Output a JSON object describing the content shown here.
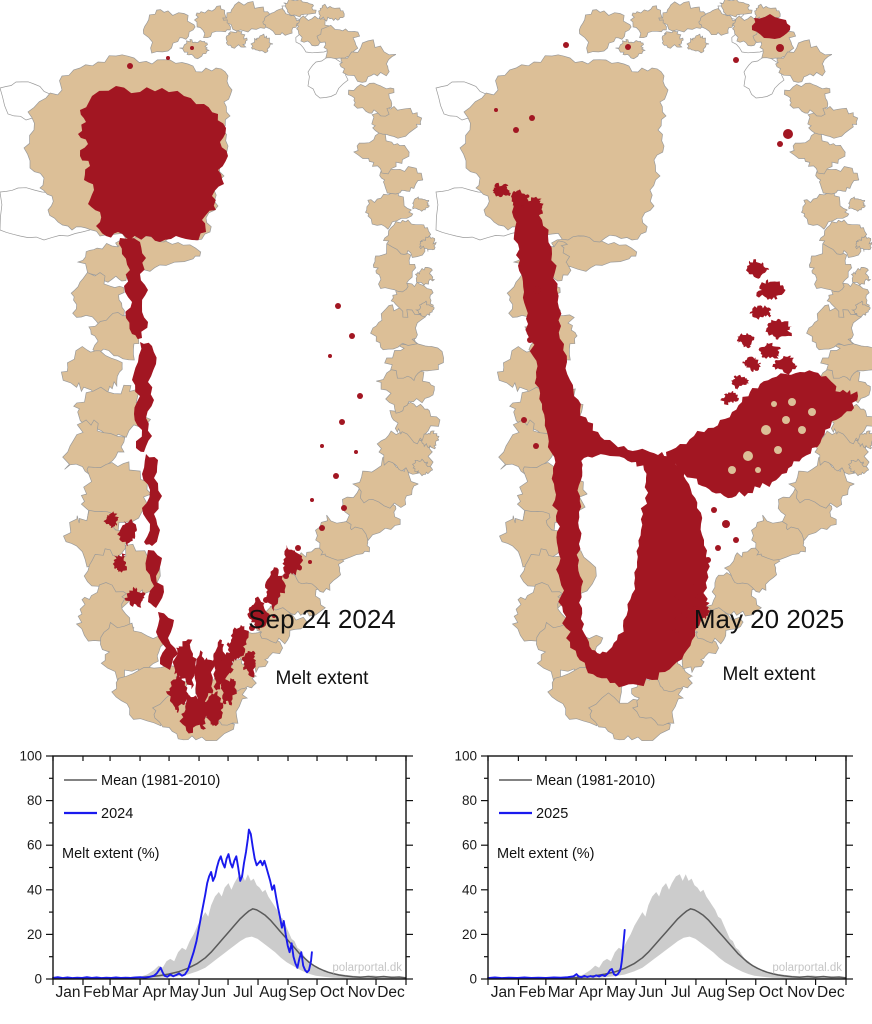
{
  "maps": [
    {
      "date_label": "Sep 24 2024",
      "caption": "Melt extent"
    },
    {
      "date_label": "May 20 2025",
      "caption": "Melt extent"
    }
  ],
  "colors": {
    "melt_red": "#a21622",
    "land_tan": "#dcbf97",
    "coastline_gray": "#9a9a9a",
    "ice_white": "#ffffff",
    "series_blue": "#1a1aee",
    "mean_gray": "#5a5a5a",
    "band_gray": "#cccccc",
    "axis_black": "#111111",
    "watermark_gray": "#c5c5c5"
  },
  "chart_data": {
    "type": "line",
    "ylabel": "Melt extent (%)",
    "ylim": [
      0,
      100
    ],
    "yticks": [
      0,
      20,
      40,
      60,
      80,
      100
    ],
    "months": [
      "Jan",
      "Feb",
      "Mar",
      "Apr",
      "May",
      "Jun",
      "Jul",
      "Aug",
      "Sep",
      "Oct",
      "Nov",
      "Dec"
    ],
    "watermark": "polarportal.dk",
    "legend_mean": "Mean (1981-2010)",
    "mean": [
      [
        1,
        0.3
      ],
      [
        15,
        0.3
      ],
      [
        31,
        0.3
      ],
      [
        45,
        0.4
      ],
      [
        60,
        0.4
      ],
      [
        75,
        0.5
      ],
      [
        91,
        0.7
      ],
      [
        100,
        1
      ],
      [
        110,
        1.5
      ],
      [
        120,
        2.2
      ],
      [
        130,
        3.2
      ],
      [
        140,
        4.8
      ],
      [
        150,
        7
      ],
      [
        158,
        9.5
      ],
      [
        164,
        12
      ],
      [
        170,
        15
      ],
      [
        176,
        18
      ],
      [
        182,
        21
      ],
      [
        188,
        24
      ],
      [
        194,
        27
      ],
      [
        199,
        29
      ],
      [
        203,
        30.5
      ],
      [
        207,
        31.5
      ],
      [
        211,
        31
      ],
      [
        215,
        30
      ],
      [
        220,
        28.5
      ],
      [
        225,
        26.5
      ],
      [
        230,
        24
      ],
      [
        235,
        21.5
      ],
      [
        240,
        19
      ],
      [
        245,
        16.5
      ],
      [
        250,
        14
      ],
      [
        255,
        11.5
      ],
      [
        260,
        9.5
      ],
      [
        265,
        7.5
      ],
      [
        270,
        6
      ],
      [
        275,
        4.8
      ],
      [
        280,
        3.8
      ],
      [
        285,
        3
      ],
      [
        290,
        2.4
      ],
      [
        296,
        1.8
      ],
      [
        302,
        1.4
      ],
      [
        310,
        1
      ],
      [
        318,
        0.8
      ],
      [
        326,
        1.1
      ],
      [
        334,
        0.8
      ],
      [
        342,
        1.1
      ],
      [
        350,
        0.7
      ],
      [
        358,
        0.9
      ],
      [
        365,
        0.5
      ]
    ],
    "band_upper": [
      [
        91,
        1
      ],
      [
        98,
        2
      ],
      [
        105,
        4
      ],
      [
        110,
        6
      ],
      [
        114,
        5
      ],
      [
        118,
        8
      ],
      [
        122,
        9
      ],
      [
        126,
        8
      ],
      [
        130,
        12
      ],
      [
        134,
        14
      ],
      [
        138,
        13
      ],
      [
        142,
        17
      ],
      [
        146,
        20
      ],
      [
        150,
        24
      ],
      [
        154,
        27
      ],
      [
        158,
        30
      ],
      [
        161,
        28
      ],
      [
        164,
        33
      ],
      [
        168,
        37
      ],
      [
        172,
        39
      ],
      [
        175,
        37
      ],
      [
        178,
        41
      ],
      [
        182,
        43
      ],
      [
        185,
        40
      ],
      [
        188,
        43
      ],
      [
        192,
        46
      ],
      [
        196,
        47
      ],
      [
        199,
        44
      ],
      [
        202,
        47
      ],
      [
        205,
        44
      ],
      [
        208,
        45
      ],
      [
        211,
        42
      ],
      [
        214,
        41
      ],
      [
        217,
        39
      ],
      [
        220,
        40
      ],
      [
        223,
        37
      ],
      [
        226,
        35
      ],
      [
        229,
        33
      ],
      [
        232,
        31
      ],
      [
        235,
        28
      ],
      [
        238,
        27
      ],
      [
        241,
        24
      ],
      [
        244,
        21
      ],
      [
        247,
        18
      ],
      [
        250,
        17
      ],
      [
        253,
        14
      ],
      [
        256,
        13
      ],
      [
        259,
        11
      ],
      [
        262,
        9
      ],
      [
        266,
        8
      ],
      [
        270,
        6
      ],
      [
        274,
        5
      ],
      [
        280,
        4
      ],
      [
        286,
        3
      ],
      [
        292,
        2.5
      ],
      [
        300,
        2
      ],
      [
        310,
        1.5
      ],
      [
        320,
        1.2
      ],
      [
        330,
        1.6
      ],
      [
        340,
        1.1
      ],
      [
        350,
        1.2
      ],
      [
        360,
        0.8
      ],
      [
        365,
        0.6
      ]
    ],
    "band_lower": [
      [
        91,
        0.2
      ],
      [
        100,
        0.3
      ],
      [
        110,
        0.5
      ],
      [
        120,
        0.8
      ],
      [
        130,
        1.2
      ],
      [
        140,
        2
      ],
      [
        150,
        3.5
      ],
      [
        158,
        5
      ],
      [
        164,
        7
      ],
      [
        170,
        9
      ],
      [
        176,
        11
      ],
      [
        182,
        13
      ],
      [
        188,
        15
      ],
      [
        194,
        17
      ],
      [
        200,
        18.5
      ],
      [
        206,
        19
      ],
      [
        212,
        18
      ],
      [
        218,
        16
      ],
      [
        224,
        14
      ],
      [
        230,
        12
      ],
      [
        236,
        9.5
      ],
      [
        242,
        7.5
      ],
      [
        248,
        6
      ],
      [
        254,
        4.5
      ],
      [
        260,
        3.2
      ],
      [
        266,
        2.2
      ],
      [
        272,
        1.5
      ],
      [
        280,
        1
      ],
      [
        290,
        0.6
      ],
      [
        300,
        0.4
      ],
      [
        320,
        0.3
      ],
      [
        340,
        0.3
      ],
      [
        365,
        0.2
      ]
    ],
    "charts": [
      {
        "year_label": "2024",
        "series": [
          [
            1,
            0.5
          ],
          [
            6,
            0.8
          ],
          [
            11,
            0.4
          ],
          [
            16,
            0.7
          ],
          [
            21,
            0.4
          ],
          [
            26,
            0.6
          ],
          [
            31,
            0.5
          ],
          [
            36,
            0.8
          ],
          [
            41,
            0.5
          ],
          [
            46,
            0.7
          ],
          [
            51,
            0.4
          ],
          [
            56,
            0.6
          ],
          [
            61,
            0.5
          ],
          [
            66,
            0.7
          ],
          [
            71,
            0.5
          ],
          [
            76,
            0.6
          ],
          [
            81,
            0.5
          ],
          [
            86,
            0.7
          ],
          [
            91,
            0.8
          ],
          [
            96,
            0.6
          ],
          [
            101,
            1
          ],
          [
            105,
            1.5
          ],
          [
            108,
            2.5
          ],
          [
            112,
            5
          ],
          [
            114,
            3
          ],
          [
            116,
            1.5
          ],
          [
            119,
            1
          ],
          [
            122,
            2
          ],
          [
            125,
            1.2
          ],
          [
            128,
            1.8
          ],
          [
            131,
            2.5
          ],
          [
            134,
            1.5
          ],
          [
            137,
            2
          ],
          [
            140,
            4
          ],
          [
            143,
            8
          ],
          [
            146,
            12
          ],
          [
            149,
            17
          ],
          [
            152,
            24
          ],
          [
            155,
            31
          ],
          [
            158,
            38
          ],
          [
            160,
            43
          ],
          [
            162,
            46
          ],
          [
            164,
            48
          ],
          [
            166,
            44
          ],
          [
            168,
            46
          ],
          [
            170,
            50
          ],
          [
            172,
            53
          ],
          [
            174,
            55
          ],
          [
            176,
            52
          ],
          [
            178,
            50
          ],
          [
            180,
            54
          ],
          [
            182,
            56
          ],
          [
            184,
            52
          ],
          [
            186,
            50
          ],
          [
            188,
            53
          ],
          [
            190,
            55
          ],
          [
            192,
            50
          ],
          [
            194,
            44
          ],
          [
            196,
            46
          ],
          [
            198,
            52
          ],
          [
            200,
            57
          ],
          [
            202,
            63
          ],
          [
            203,
            67
          ],
          [
            205,
            65
          ],
          [
            207,
            59
          ],
          [
            209,
            54
          ],
          [
            211,
            51
          ],
          [
            213,
            52
          ],
          [
            215,
            53
          ],
          [
            217,
            51
          ],
          [
            219,
            53
          ],
          [
            221,
            50
          ],
          [
            223,
            47
          ],
          [
            225,
            44
          ],
          [
            227,
            40
          ],
          [
            229,
            42
          ],
          [
            231,
            37
          ],
          [
            233,
            32
          ],
          [
            235,
            28
          ],
          [
            237,
            23
          ],
          [
            239,
            26
          ],
          [
            241,
            20
          ],
          [
            243,
            15
          ],
          [
            245,
            12
          ],
          [
            247,
            16
          ],
          [
            249,
            10
          ],
          [
            251,
            7
          ],
          [
            253,
            5
          ],
          [
            255,
            9
          ],
          [
            257,
            12
          ],
          [
            259,
            6
          ],
          [
            261,
            4
          ],
          [
            263,
            3
          ],
          [
            265,
            4
          ],
          [
            267,
            8
          ],
          [
            268,
            12
          ]
        ]
      },
      {
        "year_label": "2025",
        "series": [
          [
            1,
            0.4
          ],
          [
            8,
            0.7
          ],
          [
            15,
            0.4
          ],
          [
            22,
            0.6
          ],
          [
            31,
            0.5
          ],
          [
            38,
            0.7
          ],
          [
            45,
            0.5
          ],
          [
            52,
            0.6
          ],
          [
            60,
            0.5
          ],
          [
            68,
            0.7
          ],
          [
            75,
            0.6
          ],
          [
            82,
            0.8
          ],
          [
            88,
            1.2
          ],
          [
            91,
            2.2
          ],
          [
            93,
            1.2
          ],
          [
            96,
            0.8
          ],
          [
            99,
            1.4
          ],
          [
            102,
            0.9
          ],
          [
            105,
            1.3
          ],
          [
            108,
            1
          ],
          [
            111,
            1.6
          ],
          [
            114,
            1.1
          ],
          [
            117,
            1.8
          ],
          [
            120,
            1.3
          ],
          [
            123,
            2.5
          ],
          [
            125,
            4
          ],
          [
            127,
            4.5
          ],
          [
            129,
            2.2
          ],
          [
            131,
            1.6
          ],
          [
            133,
            2.2
          ],
          [
            135,
            3.5
          ],
          [
            136,
            5
          ],
          [
            137,
            8
          ],
          [
            138,
            12
          ],
          [
            139,
            17
          ],
          [
            140,
            22
          ]
        ]
      }
    ]
  }
}
